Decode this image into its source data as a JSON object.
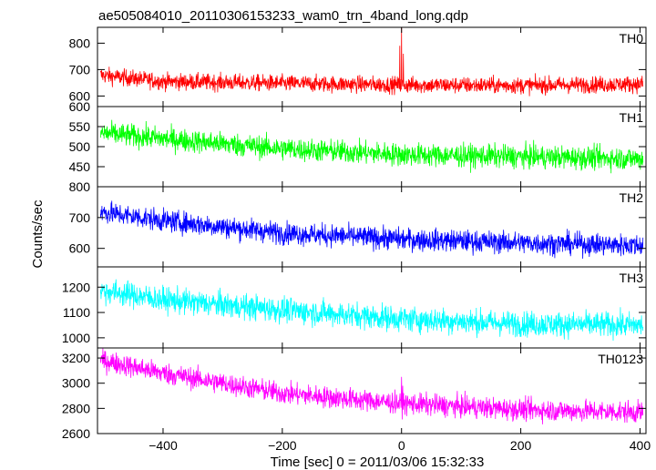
{
  "chart_data": {
    "type": "line",
    "title": "ae505084010_20110306153233_wam0_trn_4band_long.qdp",
    "xlabel": "Time [sec] 0 = 2011/03/06 15:32:33",
    "ylabel": "Counts/sec",
    "xlim": [
      -510,
      410
    ],
    "x_ticks": [
      -400,
      -200,
      0,
      200,
      400
    ],
    "x_tick_labels": [
      "−400",
      "−200",
      "0",
      "200",
      "400"
    ],
    "grid": false,
    "panels": [
      {
        "name": "TH0",
        "color": "#ff0000",
        "ylim": [
          560,
          860
        ],
        "y_ticks": [
          600,
          700,
          800
        ],
        "y_tick_labels": [
          "600",
          "700",
          "800"
        ],
        "trend": [
          [
            -510,
            680
          ],
          [
            -400,
            655
          ],
          [
            -200,
            648
          ],
          [
            0,
            642
          ],
          [
            200,
            640
          ],
          [
            400,
            645
          ]
        ],
        "noise": 22,
        "spikes": [
          {
            "x": 0,
            "y": 860
          },
          {
            "x": -3,
            "y": 790
          },
          {
            "x": 3,
            "y": 760
          }
        ]
      },
      {
        "name": "TH1",
        "color": "#00ff00",
        "ylim": [
          400,
          600
        ],
        "y_ticks": [
          450,
          500,
          550,
          600
        ],
        "y_tick_labels": [
          "450",
          "500",
          "550",
          "600"
        ],
        "trend": [
          [
            -510,
            535
          ],
          [
            -400,
            520
          ],
          [
            -200,
            495
          ],
          [
            0,
            480
          ],
          [
            200,
            475
          ],
          [
            400,
            470
          ]
        ],
        "noise": 20,
        "spikes": []
      },
      {
        "name": "TH2",
        "color": "#0000ff",
        "ylim": [
          540,
          800
        ],
        "y_ticks": [
          600,
          700,
          800
        ],
        "y_tick_labels": [
          "600",
          "700",
          "800"
        ],
        "trend": [
          [
            -510,
            720
          ],
          [
            -400,
            690
          ],
          [
            -200,
            650
          ],
          [
            0,
            630
          ],
          [
            200,
            618
          ],
          [
            400,
            610
          ]
        ],
        "noise": 25,
        "spikes": []
      },
      {
        "name": "TH3",
        "color": "#00ffff",
        "ylim": [
          960,
          1280
        ],
        "y_ticks": [
          1000,
          1100,
          1200
        ],
        "y_tick_labels": [
          "1000",
          "1100",
          "1200"
        ],
        "trend": [
          [
            -510,
            1190
          ],
          [
            -400,
            1150
          ],
          [
            -200,
            1110
          ],
          [
            0,
            1075
          ],
          [
            200,
            1055
          ],
          [
            400,
            1050
          ]
        ],
        "noise": 35,
        "spikes": []
      },
      {
        "name": "TH0123",
        "color": "#ff00ff",
        "ylim": [
          2600,
          3280
        ],
        "y_ticks": [
          2600,
          2800,
          3000,
          3200
        ],
        "y_tick_labels": [
          "2600",
          "2800",
          "3000",
          "3200"
        ],
        "trend": [
          [
            -510,
            3190
          ],
          [
            -400,
            3080
          ],
          [
            -200,
            2920
          ],
          [
            0,
            2840
          ],
          [
            200,
            2790
          ],
          [
            400,
            2770
          ]
        ],
        "noise": 60,
        "spikes": [
          {
            "x": 0,
            "y": 3050
          },
          {
            "x": 2,
            "y": 2980
          }
        ]
      }
    ]
  }
}
